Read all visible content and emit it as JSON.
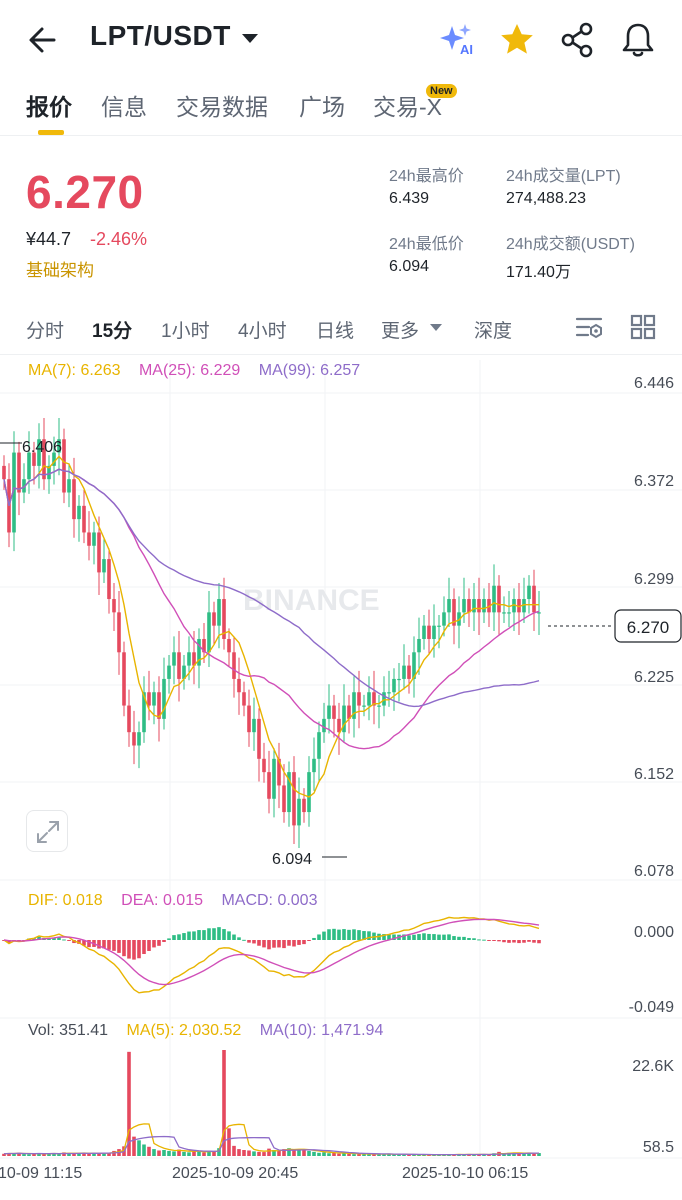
{
  "header": {
    "pair": "LPT/USDT",
    "icons": [
      "back-arrow-icon",
      "ai-sparkle-icon",
      "star-icon",
      "share-icon",
      "bell-icon"
    ],
    "colors": {
      "accent": "#f0b90b",
      "down": "#e5495e",
      "up": "#2ebd85"
    }
  },
  "tabs": [
    {
      "label": "报价",
      "active": true
    },
    {
      "label": "信息"
    },
    {
      "label": "交易数据"
    },
    {
      "label": "广场"
    },
    {
      "label": "交易-X",
      "badge": "New"
    }
  ],
  "ticker": {
    "last": "6.270",
    "cny": "¥44.7",
    "change": "-2.46%",
    "sector": "基础架构",
    "high_label": "24h最高价",
    "high": "6.439",
    "low_label": "24h最低价",
    "low": "6.094",
    "vol_label": "24h成交量(LPT)",
    "vol": "274,488.23",
    "amount_label": "24h成交额(USDT)",
    "amount": "171.40万"
  },
  "intervals": [
    {
      "label": "分时"
    },
    {
      "label": "15分",
      "active": true
    },
    {
      "label": "1小时"
    },
    {
      "label": "4小时"
    },
    {
      "label": "日线"
    },
    {
      "label": "更多"
    },
    {
      "label": "深度"
    }
  ],
  "indicators": {
    "ma7": "MA(7): 6.263",
    "ma25": "MA(25): 6.229",
    "ma99": "MA(99): 6.257",
    "dif": "DIF: 0.018",
    "dea": "DEA: 0.015",
    "macd": "MACD: 0.003",
    "vol": "Vol: 351.41",
    "vma5": "MA(5): 2,030.52",
    "vma10": "MA(10): 1,471.94"
  },
  "chart_data": {
    "type": "candlestick",
    "price_axis": [
      "6.446",
      "6.372",
      "6.299",
      "6.225",
      "6.152",
      "6.078"
    ],
    "price_range": [
      6.078,
      6.446
    ],
    "last_price_label": "6.270",
    "high_marker": "6.406",
    "low_marker": "6.094",
    "macd_axis": [
      "0.000",
      "-0.049"
    ],
    "volume_axis": [
      "22.6K",
      "58.5"
    ],
    "x_labels": [
      "10-09 11:15",
      "2025-10-09 20:45",
      "2025-10-10 06:15"
    ],
    "watermark": "BINANCE",
    "closes": [
      6.37,
      6.33,
      6.39,
      6.36,
      6.37,
      6.39,
      6.38,
      6.4,
      6.37,
      6.38,
      6.39,
      6.4,
      6.36,
      6.37,
      6.34,
      6.35,
      6.33,
      6.32,
      6.33,
      6.3,
      6.31,
      6.28,
      6.27,
      6.24,
      6.2,
      6.18,
      6.17,
      6.18,
      6.21,
      6.2,
      6.21,
      6.19,
      6.22,
      6.23,
      6.24,
      6.22,
      6.23,
      6.24,
      6.23,
      6.25,
      6.24,
      6.27,
      6.26,
      6.28,
      6.25,
      6.24,
      6.22,
      6.21,
      6.2,
      6.18,
      6.19,
      6.16,
      6.15,
      6.13,
      6.16,
      6.14,
      6.12,
      6.15,
      6.11,
      6.13,
      6.12,
      6.15,
      6.16,
      6.18,
      6.19,
      6.2,
      6.19,
      6.18,
      6.2,
      6.19,
      6.21,
      6.2,
      6.2,
      6.21,
      6.2,
      6.2,
      6.21,
      6.21,
      6.22,
      6.22,
      6.23,
      6.22,
      6.24,
      6.25,
      6.26,
      6.25,
      6.26,
      6.26,
      6.27,
      6.28,
      6.26,
      6.27,
      6.28,
      6.27,
      6.28,
      6.27,
      6.28,
      6.27,
      6.29,
      6.27,
      6.27,
      6.27,
      6.28,
      6.27,
      6.28,
      6.29,
      6.27,
      6.27
    ],
    "volumes": [
      480,
      600,
      560,
      700,
      420,
      380,
      500,
      620,
      480,
      560,
      520,
      430,
      780,
      640,
      520,
      600,
      680,
      460,
      720,
      520,
      690,
      720,
      1100,
      1500,
      2100,
      22600,
      4200,
      3400,
      2500,
      2000,
      1500,
      1200,
      1300,
      1100,
      1000,
      1400,
      900,
      800,
      1200,
      950,
      750,
      1100,
      900,
      1700,
      23000,
      6000,
      2200,
      1500,
      1300,
      1200,
      1000,
      900,
      850,
      1600,
      1300,
      1200,
      1500,
      1700,
      1400,
      1500,
      1200,
      1100,
      900,
      700,
      800,
      600,
      700,
      500,
      650,
      500,
      400,
      420,
      380,
      500,
      350,
      400,
      420,
      450,
      350,
      300,
      380,
      260,
      320,
      290,
      300,
      250,
      240,
      350,
      300,
      420,
      260,
      380,
      320,
      410,
      300,
      350,
      330,
      280,
      600,
      900,
      500,
      700,
      650,
      620,
      580,
      700,
      500,
      640
    ]
  }
}
